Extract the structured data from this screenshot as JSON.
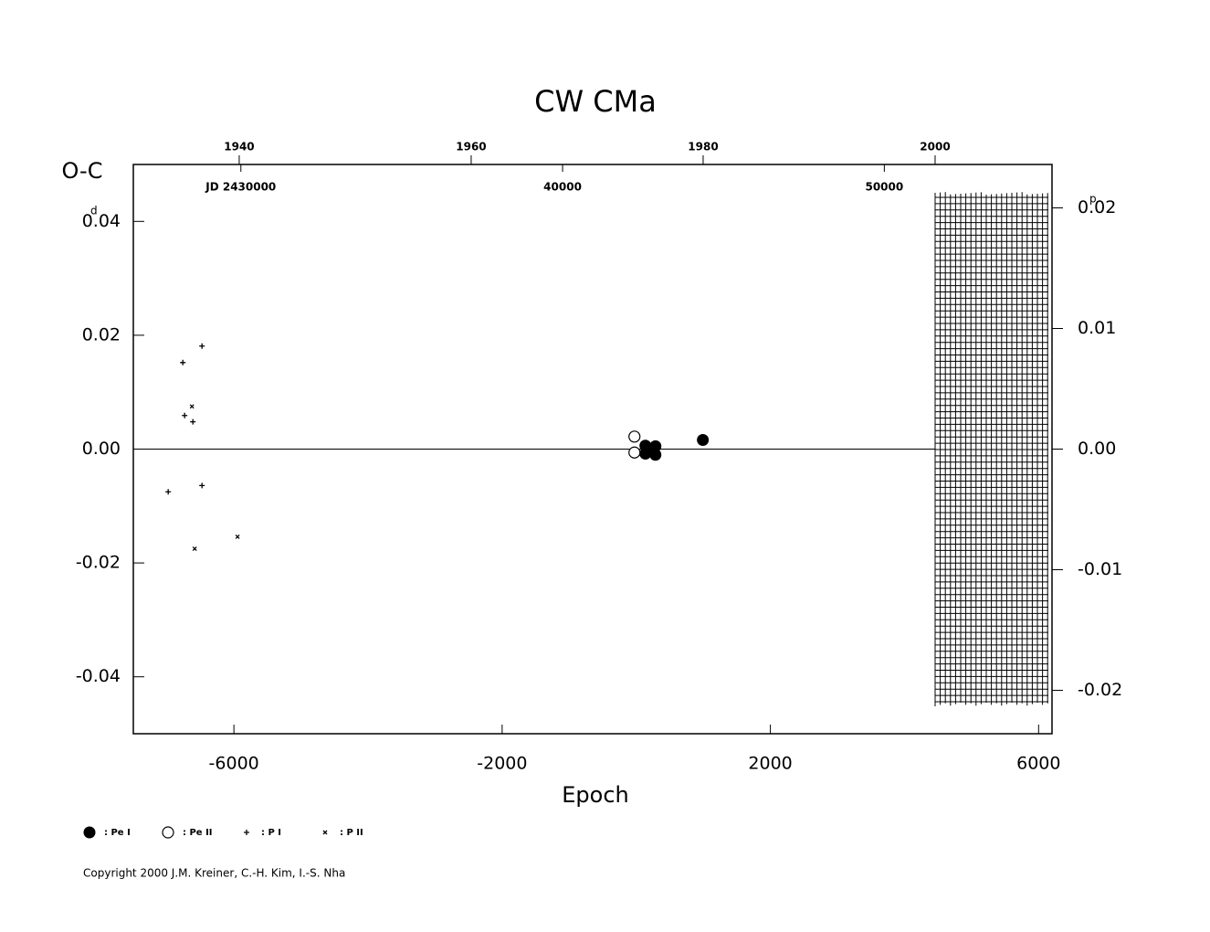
{
  "chart_data": {
    "type": "scatter",
    "title": "CW  CMa",
    "x_label": "Epoch",
    "y_label": "O-C",
    "y_unit": "d",
    "y2_unit": "p",
    "xlim": [
      -7500,
      6200
    ],
    "xticks": [
      -6000,
      -2000,
      2000,
      6000
    ],
    "ylim": [
      -0.05,
      0.05
    ],
    "yticks": [
      {
        "value": 0.04,
        "label": "0.04"
      },
      {
        "value": 0.02,
        "label": "0.02"
      },
      {
        "value": 0,
        "label": "0.00"
      },
      {
        "value": -0.02,
        "label": "-0.02"
      },
      {
        "value": -0.04,
        "label": "-0.04"
      }
    ],
    "y2lim": [
      -0.0236,
      0.0236
    ],
    "y2ticks": [
      {
        "value": 0.02,
        "label": "0.02"
      },
      {
        "value": 0.01,
        "label": "0.01"
      },
      {
        "value": 0,
        "label": "0.00"
      },
      {
        "value": -0.01,
        "label": "-0.01"
      },
      {
        "value": -0.02,
        "label": "-0.02"
      }
    ],
    "yearlim": [
      1930.87,
      2010.08
    ],
    "yearticks": [
      1940,
      1960,
      1980,
      2000
    ],
    "jdlim": [
      26657,
      55213
    ],
    "jdticks": [
      {
        "value": 30000,
        "label": "JD 2430000"
      },
      {
        "value": 40000,
        "label": "40000"
      },
      {
        "value": 50000,
        "label": "50000"
      }
    ],
    "series": [
      {
        "name": ": Pe I",
        "marker": "filled",
        "x": [
          136,
          136,
          200,
          286,
          286,
          993
        ],
        "values": [
          0.0006,
          -0.0008,
          0.0,
          0.0005,
          -0.001,
          0.0016
        ]
      },
      {
        "name": ": Pe II",
        "marker": "open",
        "x": [
          -27,
          -27
        ],
        "values": [
          0.0022,
          -0.0006
        ]
      },
      {
        "name": ": P I",
        "marker": "plus",
        "x": [
          -6762,
          -6735,
          -6612,
          -6476,
          -6980,
          -6476
        ],
        "values": [
          0.0152,
          0.0059,
          0.0048,
          0.0181,
          -0.0075,
          -0.0064
        ]
      },
      {
        "name": ": P II",
        "marker": "cross",
        "x": [
          -6626,
          -6585,
          -5946
        ],
        "values": [
          0.0075,
          -0.0175,
          -0.0154
        ]
      }
    ],
    "copyright": "Copyright 2000 J.M. Kreiner, C.-H. Kim, I.-S. Nha"
  }
}
